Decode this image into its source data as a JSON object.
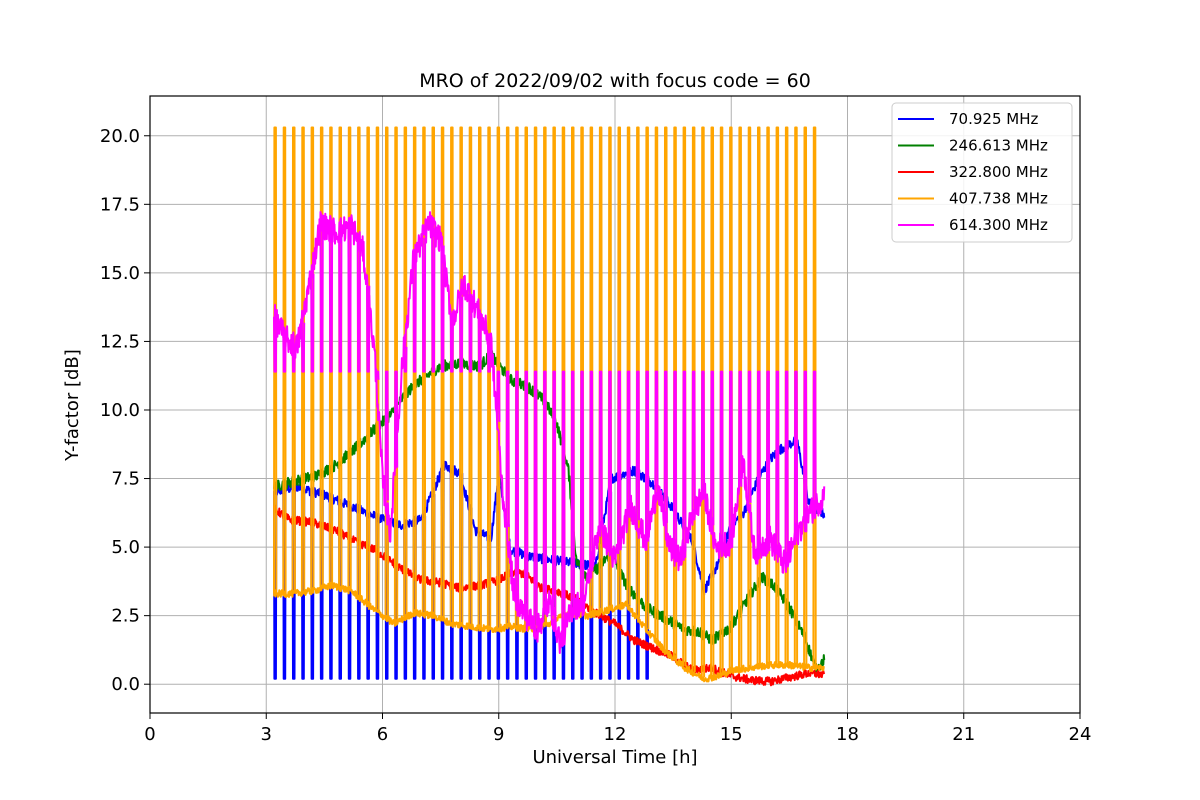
{
  "chart_data": {
    "type": "line",
    "title": "MRO of 2022/09/02 with focus code = 60",
    "xlabel": "Universal Time [h]",
    "ylabel": "Y-factor [dB]",
    "xlim": [
      0,
      24
    ],
    "ylim": [
      -1.05,
      21.45
    ],
    "xticks": [
      0,
      3,
      6,
      9,
      12,
      15,
      18,
      21,
      24
    ],
    "yticks": [
      "0.0",
      "2.5",
      "5.0",
      "7.5",
      "10.0",
      "12.5",
      "15.0",
      "17.5",
      "20.0"
    ],
    "grid": true,
    "legend_position": "top-right",
    "calibration_spikes": {
      "start_h": 3.2,
      "end_h": 17.3,
      "period_h": 0.24,
      "high_peak_db": 20.3,
      "low_peak_db": 11.4
    },
    "series": [
      {
        "name": " 70.925 MHz",
        "color": "#0000ff",
        "x": [
          3.2,
          3.8,
          4.5,
          5.0,
          5.5,
          6.0,
          6.5,
          7.0,
          7.6,
          8.0,
          8.4,
          8.8,
          9.0,
          9.3,
          9.7,
          10.0,
          10.5,
          11.0,
          11.5,
          11.9,
          12.5,
          13.0,
          13.5,
          14.0,
          14.3,
          14.7,
          15.0,
          15.3,
          15.7,
          16.0,
          16.3,
          16.7,
          17.0,
          17.4
        ],
        "y": [
          7.0,
          7.2,
          6.9,
          6.6,
          6.3,
          6.0,
          5.8,
          6.0,
          8.0,
          7.7,
          5.6,
          5.3,
          7.7,
          4.9,
          4.7,
          4.6,
          4.5,
          4.4,
          4.3,
          7.5,
          7.8,
          7.3,
          6.4,
          5.2,
          3.4,
          4.5,
          5.8,
          6.2,
          7.5,
          8.2,
          8.6,
          8.9,
          6.6,
          6.2
        ],
        "dip_low_db": 0.2,
        "dip_until_h": 13.0
      },
      {
        "name": "246.613 MHz",
        "color": "#008000",
        "x": [
          3.2,
          3.7,
          4.3,
          4.8,
          5.3,
          5.8,
          6.2,
          6.6,
          7.0,
          7.5,
          8.0,
          8.5,
          8.8,
          9.3,
          9.8,
          10.2,
          10.5,
          10.8,
          11.0,
          11.3,
          11.6,
          11.9,
          12.3,
          12.8,
          13.3,
          13.8,
          14.2,
          14.5,
          15.0,
          15.5,
          15.8,
          16.1,
          16.5,
          16.9,
          17.2,
          17.4
        ],
        "y": [
          7.2,
          7.4,
          7.6,
          8.0,
          8.6,
          9.3,
          9.8,
          10.6,
          11.1,
          11.6,
          11.7,
          11.6,
          12.0,
          11.1,
          10.8,
          10.3,
          9.5,
          7.8,
          4.5,
          3.9,
          4.3,
          4.8,
          3.6,
          2.8,
          2.4,
          2.0,
          1.9,
          1.6,
          2.1,
          3.3,
          3.9,
          3.6,
          2.8,
          1.7,
          0.5,
          0.9
        ]
      },
      {
        "name": "322.800 MHz",
        "color": "#ff0000",
        "x": [
          3.2,
          3.6,
          4.2,
          4.8,
          5.3,
          5.8,
          6.2,
          6.6,
          7.0,
          7.5,
          8.0,
          8.5,
          9.0,
          9.4,
          9.7,
          10.1,
          10.5,
          11.0,
          11.5,
          12.0,
          12.5,
          13.0,
          13.5,
          14.0,
          14.5,
          15.0,
          15.5,
          16.0,
          16.5,
          17.0,
          17.4
        ],
        "y": [
          6.4,
          6.0,
          5.9,
          5.6,
          5.2,
          4.9,
          4.5,
          4.1,
          3.8,
          3.7,
          3.5,
          3.6,
          3.8,
          4.1,
          4.0,
          3.5,
          3.4,
          3.1,
          2.6,
          2.2,
          1.6,
          1.3,
          1.0,
          0.5,
          0.6,
          0.3,
          0.15,
          0.1,
          0.25,
          0.4,
          0.35
        ]
      },
      {
        "name": "407.738 MHz",
        "color": "#ffa500",
        "x": [
          3.2,
          3.7,
          4.2,
          4.7,
          5.2,
          5.7,
          6.0,
          6.3,
          6.8,
          7.3,
          7.8,
          8.3,
          8.8,
          9.3,
          9.8,
          10.3,
          10.8,
          11.3,
          11.8,
          12.3,
          12.8,
          13.3,
          13.8,
          14.3,
          14.7,
          15.0,
          15.5,
          16.0,
          16.5,
          17.0,
          17.4
        ],
        "y": [
          3.3,
          3.3,
          3.4,
          3.6,
          3.4,
          2.8,
          2.5,
          2.2,
          2.6,
          2.5,
          2.2,
          2.1,
          2.0,
          2.1,
          2.0,
          2.2,
          2.6,
          2.5,
          2.7,
          2.9,
          2.0,
          1.2,
          0.6,
          0.2,
          0.3,
          0.5,
          0.6,
          0.7,
          0.7,
          0.6,
          0.6
        ]
      },
      {
        "name": "614.300 MHz",
        "color": "#ff00ff",
        "x": [
          3.2,
          3.5,
          3.8,
          4.1,
          4.4,
          4.8,
          5.2,
          5.5,
          5.8,
          6.0,
          6.2,
          6.5,
          6.8,
          7.2,
          7.5,
          7.8,
          8.1,
          8.4,
          8.8,
          9.1,
          9.4,
          9.7,
          10.0,
          10.3,
          10.6,
          10.9,
          11.2,
          11.6,
          12.0,
          12.4,
          12.8,
          13.1,
          13.4,
          13.7,
          14.0,
          14.3,
          14.6,
          15.0,
          15.3,
          15.6,
          16.0,
          16.4,
          16.7,
          17.0,
          17.4
        ],
        "y": [
          13.4,
          12.6,
          12.3,
          14.5,
          16.8,
          16.5,
          16.7,
          15.8,
          12.0,
          7.5,
          5.5,
          11.5,
          15.5,
          16.8,
          16.2,
          13.2,
          14.6,
          13.8,
          12.5,
          7.0,
          3.2,
          2.5,
          2.0,
          3.0,
          1.5,
          2.8,
          3.0,
          5.8,
          4.5,
          6.5,
          5.2,
          7.2,
          5.0,
          4.5,
          6.2,
          7.0,
          5.0,
          5.2,
          8.2,
          4.8,
          5.3,
          4.3,
          5.5,
          6.2,
          6.9
        ]
      }
    ]
  }
}
